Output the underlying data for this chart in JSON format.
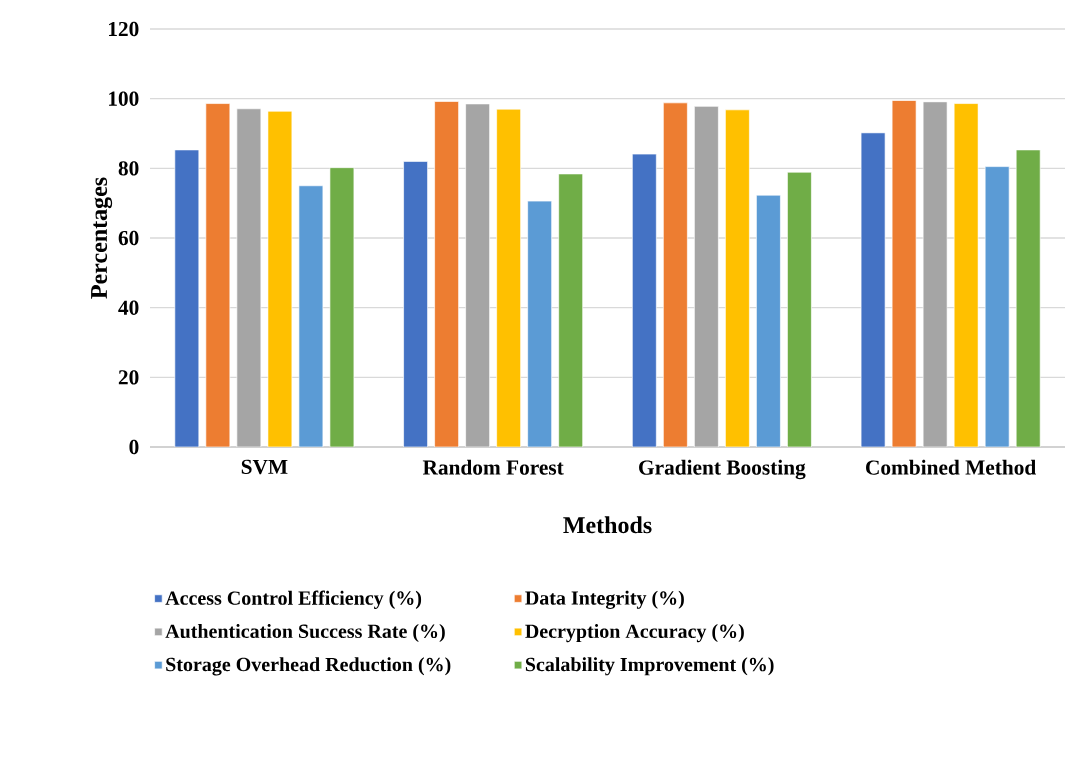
{
  "chart_data": {
    "type": "bar",
    "xlabel": "Methods",
    "ylabel": "Percentages",
    "categories": [
      "SVM",
      "Random Forest",
      "Gradient Boosting",
      "Combined Method"
    ],
    "series": [
      {
        "name": "Access Control Efficiency (%)",
        "color": "#4472c4",
        "values": [
          85.3,
          82.0,
          84.1,
          90.2
        ]
      },
      {
        "name": "Data Integrity (%)",
        "color": "#ed7d31",
        "values": [
          98.6,
          99.2,
          98.8,
          99.5
        ]
      },
      {
        "name": "Authentication Success Rate (%)",
        "color": "#a5a5a5",
        "values": [
          97.1,
          98.5,
          97.8,
          99.1
        ]
      },
      {
        "name": "Decryption Accuracy (%)",
        "color": "#ffc000",
        "values": [
          96.4,
          97.0,
          96.8,
          98.6
        ]
      },
      {
        "name": "Storage Overhead Reduction (%)",
        "color": "#5b9bd5",
        "values": [
          75.0,
          70.6,
          72.3,
          80.5
        ]
      },
      {
        "name": "Scalability Improvement (%)",
        "color": "#70ad47",
        "values": [
          80.2,
          78.4,
          78.9,
          85.3
        ]
      }
    ],
    "ylim": [
      0,
      120
    ],
    "yticks": [
      0,
      20,
      40,
      60,
      80,
      100,
      120
    ],
    "grid": "y",
    "legend": "bottom"
  }
}
